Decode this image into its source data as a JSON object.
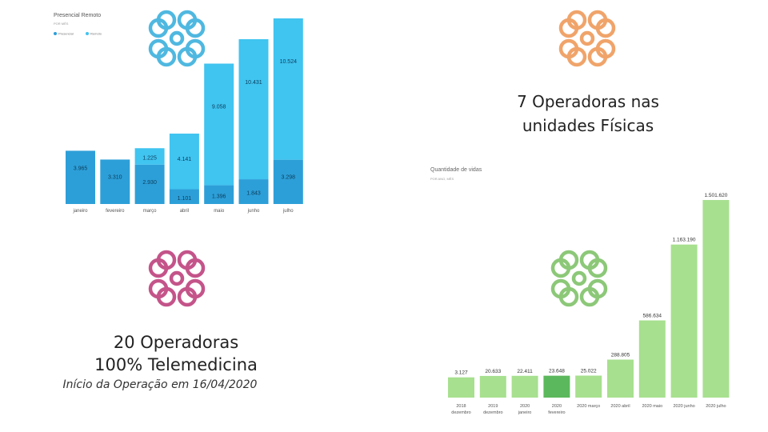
{
  "colors": {
    "presencial": "#2d9fd8",
    "remoto": "#40c4f0",
    "green_light": "#a7e08f",
    "green_dark": "#5cb85c",
    "logo_blue": "#4fb8e0",
    "logo_orange": "#f0a46a",
    "logo_magenta": "#c4548a",
    "logo_green": "#8cc878"
  },
  "icons": [
    "clover-logo-icon"
  ],
  "captions": {
    "top_right": [
      "7 Operadoras nas",
      "unidades Físicas"
    ],
    "bottom_left_line1": "20 Operadoras",
    "bottom_left_line2": "100% Telemedicina",
    "bottom_left_line3": "Início da Operação em 16/04/2020"
  },
  "chart_data": [
    {
      "type": "bar",
      "title": "Presencial Remoto",
      "subtitle": "POR MÊS",
      "legend": [
        "Presencial",
        "Remoto"
      ],
      "legend_position": "top-left",
      "stacked": true,
      "categories": [
        "janeiro",
        "fevereiro",
        "março",
        "abril",
        "maio",
        "junho",
        "julho"
      ],
      "series": [
        {
          "name": "Presencial",
          "values": [
            3965,
            3310,
            2930,
            1101,
            1396,
            1843,
            3298
          ],
          "labels": [
            "3.965",
            "3.310",
            "2.930",
            "1.101",
            "1.396",
            "1.843",
            "3.298"
          ]
        },
        {
          "name": "Remoto",
          "values": [
            0,
            0,
            1225,
            4141,
            9058,
            10431,
            10524
          ],
          "labels": [
            "",
            "",
            "1.225",
            "4.141",
            "9.058",
            "10.431",
            "10.524"
          ]
        }
      ],
      "ylim": [
        0,
        14000
      ]
    },
    {
      "type": "bar",
      "title": "Quantidade de vidas",
      "subtitle": "POR ANO, MÊS",
      "categories": [
        [
          "2018",
          "dezembro"
        ],
        [
          "2019",
          "dezembro"
        ],
        [
          "2020",
          "janeiro"
        ],
        [
          "2020",
          "fevereiro"
        ],
        [
          "2020 março",
          ""
        ],
        [
          "2020 abril",
          ""
        ],
        [
          "2020 maio",
          ""
        ],
        [
          "2020 junho",
          ""
        ],
        [
          "2020 julho",
          ""
        ]
      ],
      "values": [
        3127,
        20633,
        22411,
        23648,
        25022,
        288805,
        586634,
        1163190,
        1501620
      ],
      "labels": [
        "3.127",
        "20.633",
        "22.411",
        "23.648",
        "25.022",
        "288.805",
        "586.634",
        "1.163.190",
        "1.501.620"
      ],
      "highlight_index": 3,
      "ylim": [
        0,
        1520000
      ]
    }
  ]
}
